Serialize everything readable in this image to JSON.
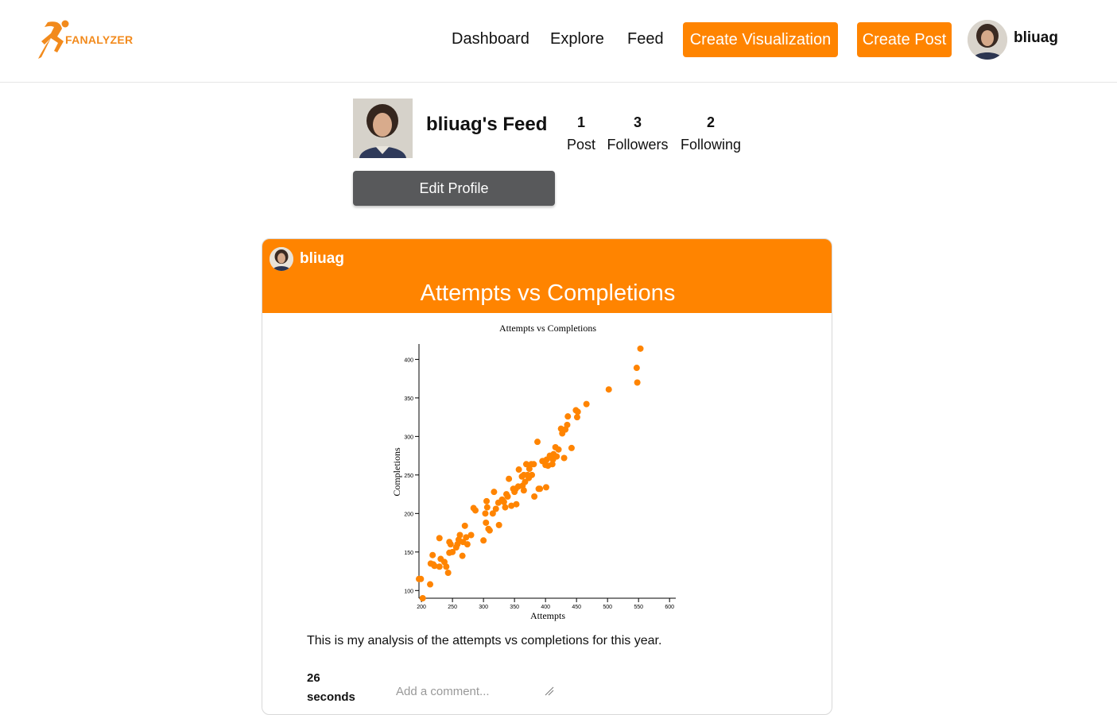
{
  "header": {
    "logo_text": "FANALYZER",
    "nav": [
      "Dashboard",
      "Explore",
      "Feed"
    ],
    "create_visualization_label": "Create Visualization",
    "create_post_label": "Create Post",
    "username": "bliuag"
  },
  "profile": {
    "title": "bliuag's Feed",
    "stats": [
      {
        "num": "1",
        "label": "Post"
      },
      {
        "num": "3",
        "label": "Followers"
      },
      {
        "num": "2",
        "label": "Following"
      }
    ],
    "edit_label": "Edit Profile"
  },
  "post": {
    "username": "bliuag",
    "title": "Attempts vs Completions",
    "description": "This is my analysis of the attempts vs completions for this year.",
    "time_ago": "26 seconds",
    "comment_placeholder": "Add a comment..."
  },
  "colors": {
    "accent": "#ff8400",
    "edit_button": "#58595b"
  },
  "chart_data": {
    "type": "scatter",
    "title": "Attempts vs Completions",
    "xlabel": "Attempts",
    "ylabel": "Completions",
    "xlim": [
      196,
      610
    ],
    "ylim": [
      90,
      420
    ],
    "xticks": [
      200,
      250,
      300,
      350,
      400,
      450,
      500,
      550,
      600
    ],
    "yticks": [
      100,
      150,
      200,
      250,
      300,
      350,
      400
    ],
    "color": "#ff8400",
    "points": [
      [
        196,
        115
      ],
      [
        199,
        115
      ],
      [
        202,
        90
      ],
      [
        214,
        108
      ],
      [
        215,
        135
      ],
      [
        218,
        146
      ],
      [
        219,
        134
      ],
      [
        221,
        132
      ],
      [
        229,
        168
      ],
      [
        229,
        131
      ],
      [
        231,
        141
      ],
      [
        237,
        137
      ],
      [
        240,
        131
      ],
      [
        243,
        123
      ],
      [
        245,
        149
      ],
      [
        245,
        163
      ],
      [
        247,
        160
      ],
      [
        250,
        150
      ],
      [
        256,
        156
      ],
      [
        258,
        160
      ],
      [
        260,
        166
      ],
      [
        262,
        172
      ],
      [
        266,
        145
      ],
      [
        267,
        163
      ],
      [
        270,
        184
      ],
      [
        272,
        169
      ],
      [
        274,
        160
      ],
      [
        280,
        172
      ],
      [
        284,
        207
      ],
      [
        287,
        204
      ],
      [
        300,
        165
      ],
      [
        303,
        200
      ],
      [
        304,
        188
      ],
      [
        305,
        216
      ],
      [
        306,
        208
      ],
      [
        308,
        180
      ],
      [
        310,
        178
      ],
      [
        315,
        200
      ],
      [
        317,
        228
      ],
      [
        320,
        206
      ],
      [
        324,
        214
      ],
      [
        325,
        185
      ],
      [
        330,
        218
      ],
      [
        333,
        215
      ],
      [
        335,
        208
      ],
      [
        337,
        225
      ],
      [
        339,
        222
      ],
      [
        341,
        245
      ],
      [
        345,
        210
      ],
      [
        348,
        232
      ],
      [
        350,
        228
      ],
      [
        352,
        232
      ],
      [
        353,
        212
      ],
      [
        356,
        235
      ],
      [
        357,
        257
      ],
      [
        362,
        248
      ],
      [
        363,
        236
      ],
      [
        365,
        250
      ],
      [
        365,
        230
      ],
      [
        367,
        241
      ],
      [
        369,
        264
      ],
      [
        371,
        250
      ],
      [
        373,
        246
      ],
      [
        374,
        258
      ],
      [
        377,
        264
      ],
      [
        378,
        250
      ],
      [
        381,
        264
      ],
      [
        382,
        222
      ],
      [
        387,
        293
      ],
      [
        389,
        232
      ],
      [
        391,
        232
      ],
      [
        395,
        268
      ],
      [
        396,
        268
      ],
      [
        400,
        263
      ],
      [
        401,
        234
      ],
      [
        402,
        270
      ],
      [
        404,
        262
      ],
      [
        407,
        275
      ],
      [
        411,
        264
      ],
      [
        412,
        270
      ],
      [
        413,
        277
      ],
      [
        416,
        286
      ],
      [
        418,
        274
      ],
      [
        421,
        283
      ],
      [
        425,
        310
      ],
      [
        427,
        304
      ],
      [
        430,
        272
      ],
      [
        432,
        309
      ],
      [
        435,
        315
      ],
      [
        436,
        326
      ],
      [
        442,
        285
      ],
      [
        449,
        334
      ],
      [
        451,
        325
      ],
      [
        452,
        332
      ],
      [
        466,
        342
      ],
      [
        502,
        361
      ],
      [
        547,
        389
      ],
      [
        548,
        370
      ],
      [
        553,
        414
      ]
    ]
  }
}
